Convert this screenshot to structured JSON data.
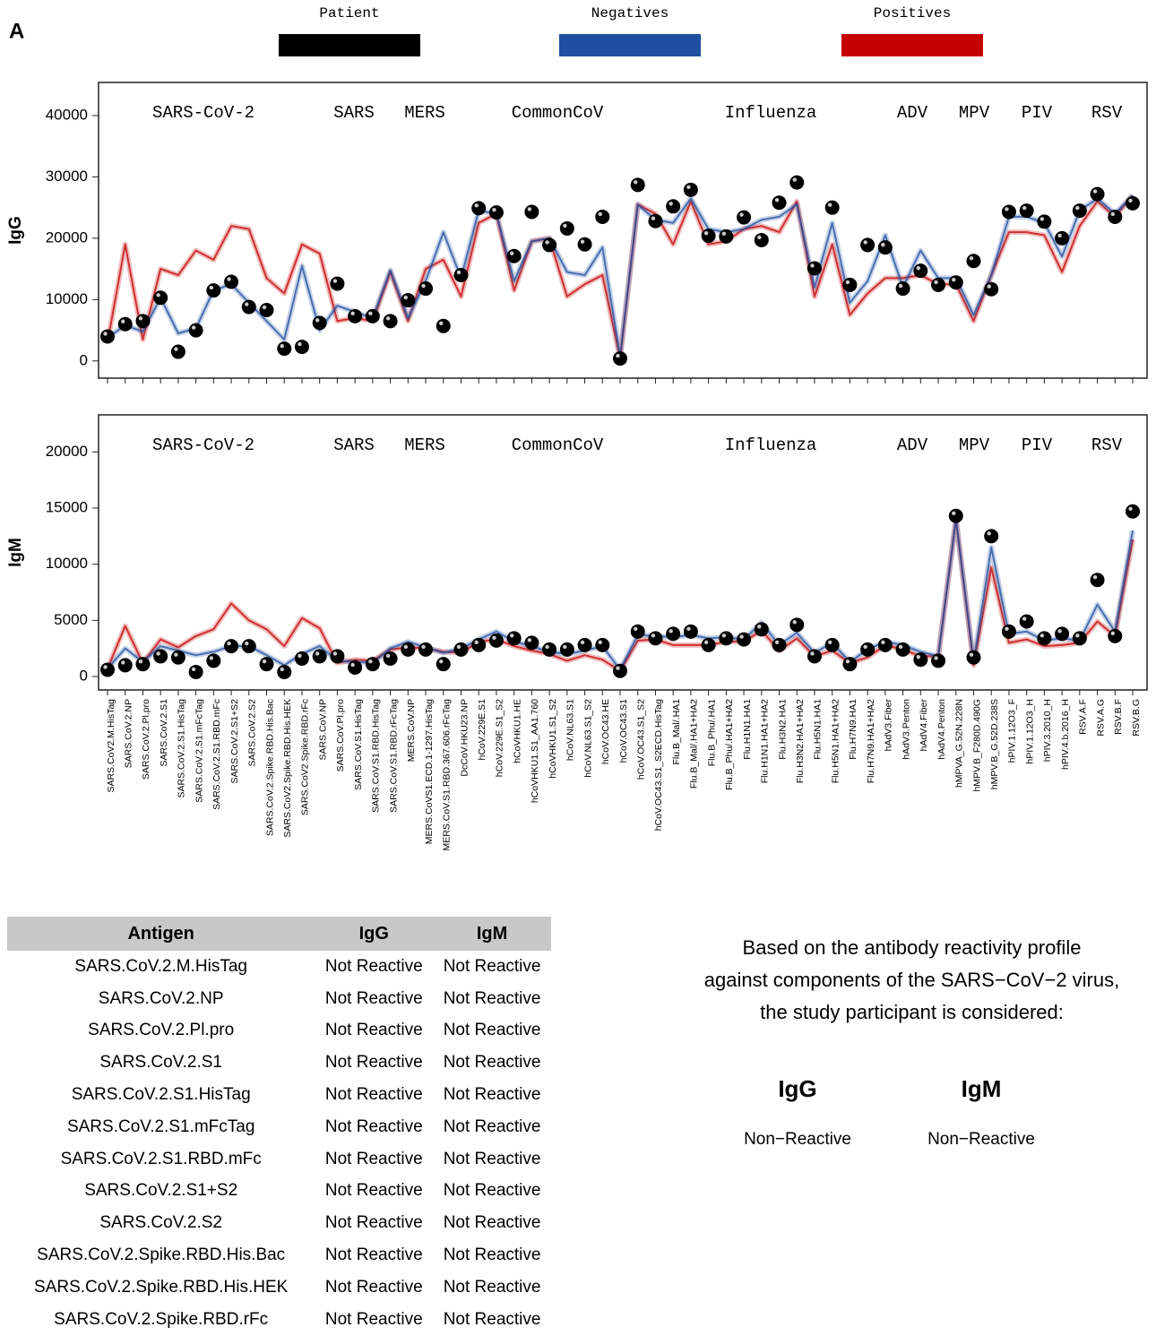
{
  "panel_label": "A",
  "chart_data": [
    {
      "type": "line",
      "y_label": "IgG",
      "groups": [
        "SARS-CoV-2",
        "SARS",
        "MERS",
        "CommonCoV",
        "Influenza",
        "ADV",
        "MPV",
        "PIV",
        "RSV"
      ],
      "ylim": [
        -2800,
        45400
      ],
      "yticks": [
        0,
        10000,
        20000,
        30000,
        40000
      ],
      "series": [
        {
          "name": "Patient",
          "color": "#000000",
          "style": "points",
          "values": [
            4000,
            6000,
            6500,
            10300,
            1500,
            5000,
            11500,
            12900,
            8800,
            8300,
            2000,
            2300,
            6200,
            12600,
            7300,
            7300,
            6500,
            9900,
            11800,
            5700,
            14000,
            24900,
            24200,
            17100,
            24300,
            18900,
            21600,
            19000,
            23500,
            400,
            28700,
            22800,
            25200,
            27900,
            20400,
            20300,
            23400,
            19700,
            25800,
            29100,
            15100,
            25000,
            12400,
            18900,
            18500,
            11800,
            14700,
            12400,
            12800,
            16300,
            11700,
            24300,
            24500,
            22700,
            20000,
            24500,
            27200,
            23500,
            25700
          ]
        },
        {
          "name": "Negatives",
          "color": "#1f4fa0",
          "style": "line",
          "values": [
            3800,
            5800,
            4800,
            10300,
            4500,
            5300,
            11500,
            12500,
            9500,
            6500,
            3500,
            15500,
            5000,
            9000,
            8000,
            7000,
            14800,
            7000,
            13000,
            21000,
            13500,
            24500,
            24000,
            13000,
            19500,
            20000,
            14500,
            14000,
            18500,
            800,
            25500,
            23000,
            22500,
            26500,
            21500,
            21000,
            21500,
            23000,
            23500,
            25500,
            12000,
            22500,
            9500,
            13000,
            20500,
            12000,
            18000,
            13500,
            13500,
            7500,
            14000,
            23500,
            23500,
            22500,
            17000,
            24500,
            26500,
            24000,
            27000
          ]
        },
        {
          "name": "Positives",
          "color": "#c40000",
          "style": "line",
          "values": [
            3000,
            19000,
            3500,
            15000,
            14000,
            18000,
            16500,
            22000,
            21500,
            13500,
            11000,
            19000,
            17500,
            6500,
            7000,
            6500,
            14500,
            6500,
            15000,
            16500,
            10500,
            22500,
            24000,
            11500,
            19500,
            20000,
            10500,
            12500,
            14000,
            400,
            25500,
            24000,
            19000,
            26000,
            19000,
            19500,
            21500,
            22000,
            21000,
            26000,
            10500,
            19000,
            7500,
            11000,
            13500,
            13500,
            14000,
            12500,
            12500,
            6500,
            14000,
            21000,
            21000,
            20500,
            14500,
            22000,
            26000,
            23500,
            27000
          ]
        }
      ]
    },
    {
      "type": "line",
      "y_label": "IgM",
      "groups": [
        "SARS-CoV-2",
        "SARS",
        "MERS",
        "CommonCoV",
        "Influenza",
        "ADV",
        "MPV",
        "PIV",
        "RSV"
      ],
      "categories": [
        "SARS.CoV2.M.HisTag",
        "SARS.CoV.2.NP",
        "SARS.CoV.2.Pl.pro",
        "SARS.CoV.2.S1",
        "SARS.CoV.2.S1.HisTag",
        "SARS.CoV.2.S1.mFcTag",
        "SARS.CoV.2.S1.RBD.mFc",
        "SARS.CoV.2.S1+S2",
        "SARS.CoV.2.S2",
        "SARS.CoV.2.Spike.RBD.His.Bac",
        "SARS.CoV2.Spike.RBD.His.HEK",
        "SARS.CoV2.Spike.RBD.rFc",
        "SARS.CoV.NP",
        "SARS.CoV.Pl.pro",
        "SARS.CoV.S1.HisTag",
        "SARS.CoV.S1.RBD.HisTag",
        "SARS.CoV.S1.RBD.rFcTag",
        "MERS.CoV.NP",
        "MERS.CoVS1.ECD.1-1297.HisTag",
        "MERS.CoV.S1.RBD.367.606.rFcTag",
        "DcCoV.HKU23.NP",
        "hCoV.229E.S1",
        "hCoV.229E.S1_S2",
        "hCoVHKU1.HE",
        "hCoVHKU1.S1_AA1.760",
        "hCoVHKU1.S1_S2",
        "hCoV.NL63.S1",
        "hCoV.NL63.S1_S2",
        "hCoV.OC43.HE",
        "hCoV.OC43.S1",
        "hCoV.OC43.S1_S2",
        "hCoV.OC43.S1_S2ECD.HisTag",
        "Flu.B_Mal/.HA1",
        "Flu.B_Mal/.HA1+HA2",
        "Flu.B_Phu/.HA1",
        "Flu.B_Phu/.HA1+HA2",
        "Flu.H1N1.HA1",
        "Flu.H1N1.HA1+HA2",
        "Flu.H3N2.HA1",
        "Flu.H3N2.HA1+HA2",
        "Flu.H5N1.HA1",
        "Flu.H5N1.HA1+HA2",
        "Flu.H7N9.HA1",
        "Flu.H7N9.HA1+HA2",
        "hAdV3.Fiber",
        "hAdV3.Penton",
        "hAdV4.Fiber",
        "hAdV4.Penton",
        "hMPVA_G.52N.228N",
        "hMPV.B_F280D.490G",
        "hMPV.B_G.52D.238S",
        "hPIV.1.12O3_F",
        "hPIV.1.12O3_H",
        "hPIV.3.2010_H",
        "hPIV.4.b.2016_H",
        "RSV.A.F",
        "RSV.A.G",
        "RSV.B.F",
        "RSV.B.G"
      ],
      "ylim": [
        -1200,
        23300
      ],
      "yticks": [
        0,
        5000,
        10000,
        15000,
        20000
      ],
      "series": [
        {
          "color": "#000000",
          "style": "points",
          "values": [
            600,
            1000,
            1100,
            1800,
            1700,
            400,
            1400,
            2700,
            2700,
            1100,
            400,
            1600,
            1800,
            1800,
            800,
            1100,
            1600,
            2400,
            2400,
            1100,
            2400,
            2800,
            3200,
            3400,
            3000,
            2400,
            2400,
            2800,
            2800,
            500,
            4000,
            3400,
            3800,
            4000,
            2800,
            3400,
            3300,
            4200,
            2800,
            4600,
            1800,
            2800,
            1100,
            2400,
            2800,
            2400,
            1500,
            1400,
            14300,
            1700,
            12500,
            4000,
            4900,
            3400,
            3800,
            3400,
            8600,
            3600,
            14700
          ]
        },
        {
          "color": "#1f4fa0",
          "style": "line",
          "values": [
            700,
            2500,
            1300,
            2700,
            2300,
            1900,
            2200,
            2700,
            2700,
            1900,
            1000,
            2000,
            2700,
            1400,
            1300,
            1200,
            2500,
            3100,
            2600,
            2100,
            2500,
            3300,
            4000,
            3100,
            2700,
            2200,
            2000,
            2300,
            2700,
            600,
            3700,
            3600,
            3500,
            3700,
            3400,
            3500,
            3300,
            4800,
            2800,
            3900,
            2100,
            3000,
            1300,
            2400,
            3100,
            2800,
            2200,
            1800,
            14000,
            1300,
            11500,
            3800,
            4000,
            3200,
            3400,
            3200,
            6400,
            4000,
            13000
          ]
        },
        {
          "color": "#c40000",
          "style": "line",
          "values": [
            700,
            4500,
            1200,
            3300,
            2600,
            3600,
            4200,
            6500,
            5000,
            4200,
            2700,
            5200,
            4300,
            1200,
            1500,
            1400,
            2400,
            2600,
            2500,
            2200,
            2100,
            3100,
            3300,
            2700,
            2300,
            2000,
            1400,
            1900,
            1500,
            500,
            3200,
            3300,
            2800,
            2800,
            2800,
            3100,
            3100,
            4100,
            2300,
            3400,
            1800,
            2300,
            1200,
            1700,
            2800,
            2400,
            1800,
            1800,
            14000,
            1000,
            9700,
            3000,
            3300,
            2700,
            2800,
            3000,
            4900,
            3600,
            12200
          ]
        }
      ]
    }
  ],
  "table": {
    "header": [
      "Antigen",
      "IgG",
      "IgM"
    ],
    "rows": [
      [
        "SARS.CoV.2.M.HisTag",
        "Not Reactive",
        "Not Reactive"
      ],
      [
        "SARS.CoV.2.NP",
        "Not Reactive",
        "Not Reactive"
      ],
      [
        "SARS.CoV.2.Pl.pro",
        "Not Reactive",
        "Not Reactive"
      ],
      [
        "SARS.CoV.2.S1",
        "Not Reactive",
        "Not Reactive"
      ],
      [
        "SARS.CoV.2.S1.HisTag",
        "Not Reactive",
        "Not Reactive"
      ],
      [
        "SARS.CoV.2.S1.mFcTag",
        "Not Reactive",
        "Not Reactive"
      ],
      [
        "SARS.CoV.2.S1.RBD.mFc",
        "Not Reactive",
        "Not Reactive"
      ],
      [
        "SARS.CoV.2.S1+S2",
        "Not Reactive",
        "Not Reactive"
      ],
      [
        "SARS.CoV.2.S2",
        "Not Reactive",
        "Not Reactive"
      ],
      [
        "SARS.CoV.2.Spike.RBD.His.Bac",
        "Not Reactive",
        "Not Reactive"
      ],
      [
        "SARS.CoV.2.Spike.RBD.His.HEK",
        "Not Reactive",
        "Not Reactive"
      ],
      [
        "SARS.CoV.2.Spike.RBD.rFc",
        "Not Reactive",
        "Not Reactive"
      ]
    ]
  },
  "summary": {
    "lines": [
      "Based on the antibody reactivity profile",
      "against components of the SARS−CoV−2 virus,",
      "the study participant is considered:"
    ],
    "results": [
      {
        "label": "IgG",
        "value": "Non−Reactive"
      },
      {
        "label": "IgM",
        "value": "Non−Reactive"
      }
    ]
  }
}
